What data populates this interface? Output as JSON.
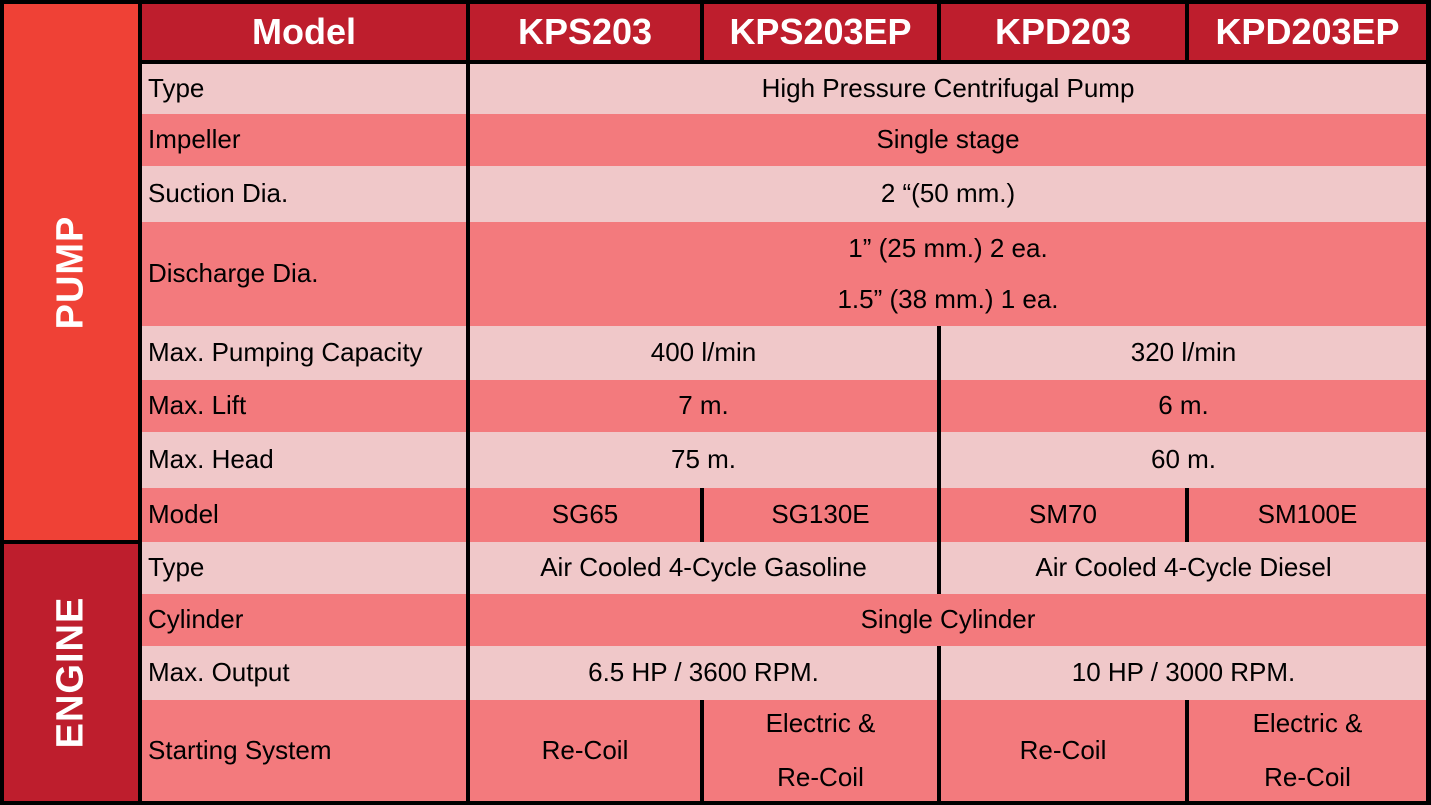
{
  "sections": {
    "pump": "PUMP",
    "engine": "ENGINE"
  },
  "header": {
    "model_label": "Model",
    "models": [
      "KPS203",
      "KPS203EP",
      "KPD203",
      "KPD203EP"
    ]
  },
  "rows": {
    "pump_type": {
      "label": "Type",
      "value": "High Pressure Centrifugal Pump"
    },
    "impeller": {
      "label": "Impeller",
      "value": "Single stage"
    },
    "suction": {
      "label": "Suction Dia.",
      "value": "2 “(50 mm.)"
    },
    "discharge": {
      "label": "Discharge Dia.",
      "line1": "1” (25 mm.) 2 ea.",
      "line2": "1.5” (38 mm.) 1 ea."
    },
    "capacity": {
      "label": "Max. Pumping Capacity",
      "kps": "400 l/min",
      "kpd": "320 l/min"
    },
    "lift": {
      "label": "Max. Lift",
      "kps": "7 m.",
      "kpd": "6 m."
    },
    "head": {
      "label": "Max. Head",
      "kps": "75 m.",
      "kpd": "60 m."
    },
    "engine_model": {
      "label": "Model",
      "values": [
        "SG65",
        "SG130E",
        "SM70",
        "SM100E"
      ]
    },
    "engine_type": {
      "label": "Type",
      "kps": "Air Cooled 4-Cycle Gasoline",
      "kpd": "Air Cooled 4-Cycle Diesel"
    },
    "cylinder": {
      "label": "Cylinder",
      "value": "Single Cylinder"
    },
    "output": {
      "label": "Max. Output",
      "kps": "6.5 HP / 3600 RPM.",
      "kpd": "10 HP / 3000 RPM."
    },
    "starting": {
      "label": "Starting System",
      "recoil": "Re-Coil",
      "electric_line1": "Electric &",
      "electric_line2": "Re-Coil"
    }
  }
}
